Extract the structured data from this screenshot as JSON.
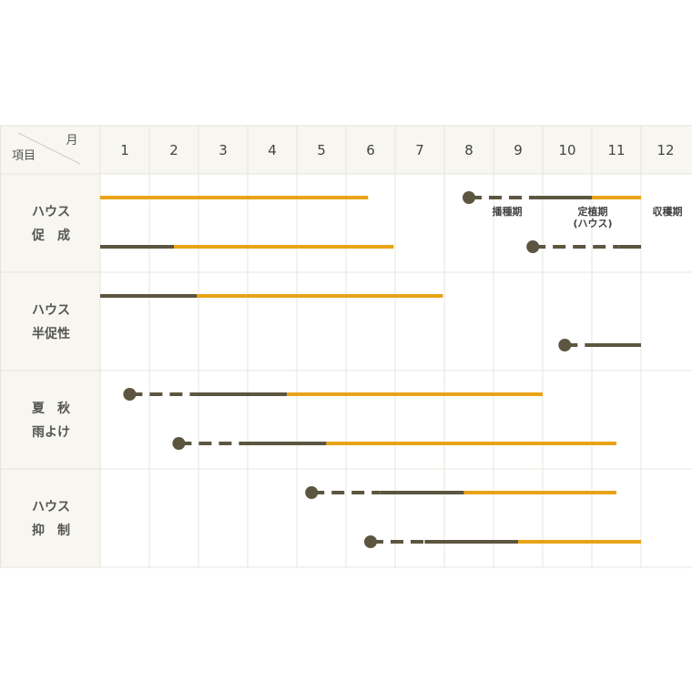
{
  "header": {
    "month_label": "月",
    "item_label": "項目",
    "months": [
      "1",
      "2",
      "3",
      "4",
      "5",
      "6",
      "7",
      "8",
      "9",
      "10",
      "11",
      "12"
    ]
  },
  "legend_labels": {
    "sowing": "播種期",
    "planting_line1": "定植期",
    "planting_line2": "(ハウス)",
    "harvest": "収穫期"
  },
  "colors": {
    "sowing_line": "#5c5540",
    "growth_line": "#5c5540",
    "harvest_line": "#e8a317",
    "marker": "#5c5540",
    "grid": "#e6e4dc",
    "label_bg": "#f7f6f0",
    "text": "#555555"
  },
  "rows": [
    {
      "label_line1": "ハウス",
      "label_line2": "促　成",
      "tracks": [
        {
          "harvest": [
            1.0,
            6.45
          ]
        },
        {
          "sow": 8.5,
          "dashed": [
            8.5,
            9.85
          ],
          "growth": [
            9.85,
            11.0
          ],
          "harvest": [
            11.0,
            12.0
          ]
        }
      ],
      "tracks2": [
        {
          "growth": [
            1.0,
            2.5
          ],
          "harvest": [
            2.5,
            6.97
          ]
        },
        {
          "sow": 9.8,
          "dashed": [
            9.8,
            11.55
          ],
          "growth": [
            11.55,
            12.0
          ]
        }
      ]
    },
    {
      "label_line1": "ハウス",
      "label_line2": "半促性",
      "tracks": [
        {
          "growth": [
            1.0,
            2.97
          ],
          "harvest": [
            2.97,
            7.97
          ]
        },
        {
          "sow": 10.45,
          "dashed": [
            10.45,
            11.0
          ],
          "growth": [
            11.0,
            12.0
          ]
        }
      ]
    },
    {
      "label_line1": "夏　秋",
      "label_line2": "雨よけ",
      "tracks": [
        {
          "sow": 1.6,
          "dashed": [
            1.6,
            3.0
          ],
          "growth": [
            3.0,
            4.8
          ],
          "harvest": [
            4.8,
            10.0
          ]
        },
        {
          "sow": 2.6,
          "dashed": [
            2.6,
            4.0
          ],
          "growth": [
            4.0,
            5.6
          ],
          "harvest": [
            5.6,
            11.5
          ]
        }
      ]
    },
    {
      "label_line1": "ハウス",
      "label_line2": "抑　制",
      "tracks": [
        {
          "sow": 5.3,
          "dashed": [
            5.3,
            6.7
          ],
          "growth": [
            6.7,
            8.4
          ],
          "harvest": [
            8.4,
            11.5
          ]
        },
        {
          "sow": 6.5,
          "dashed": [
            6.5,
            7.6
          ],
          "growth": [
            7.6,
            9.5
          ],
          "harvest": [
            9.5,
            12.0
          ]
        }
      ]
    }
  ]
}
